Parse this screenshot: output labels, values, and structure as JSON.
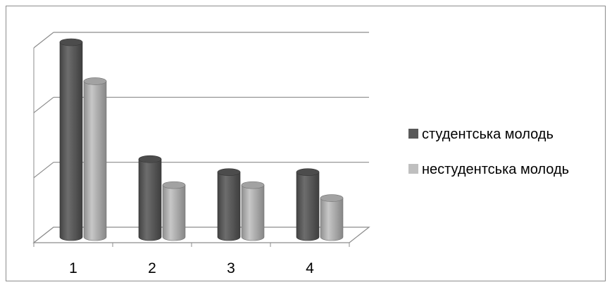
{
  "chart_data": {
    "type": "bar",
    "categories": [
      "1",
      "2",
      "3",
      "4"
    ],
    "series": [
      {
        "name": "студентська молодь",
        "values": [
          3.0,
          1.2,
          1.0,
          1.0
        ],
        "color": "#595959"
      },
      {
        "name": "нестудентська молодь",
        "values": [
          2.4,
          0.8,
          0.8,
          0.6
        ],
        "color": "#bfbfbf"
      }
    ],
    "ylim": [
      0,
      3
    ],
    "ytick_count": 3,
    "grid": true,
    "style": "3d-cylinder",
    "legend_position": "right",
    "title": "",
    "xlabel": "",
    "ylabel": ""
  }
}
